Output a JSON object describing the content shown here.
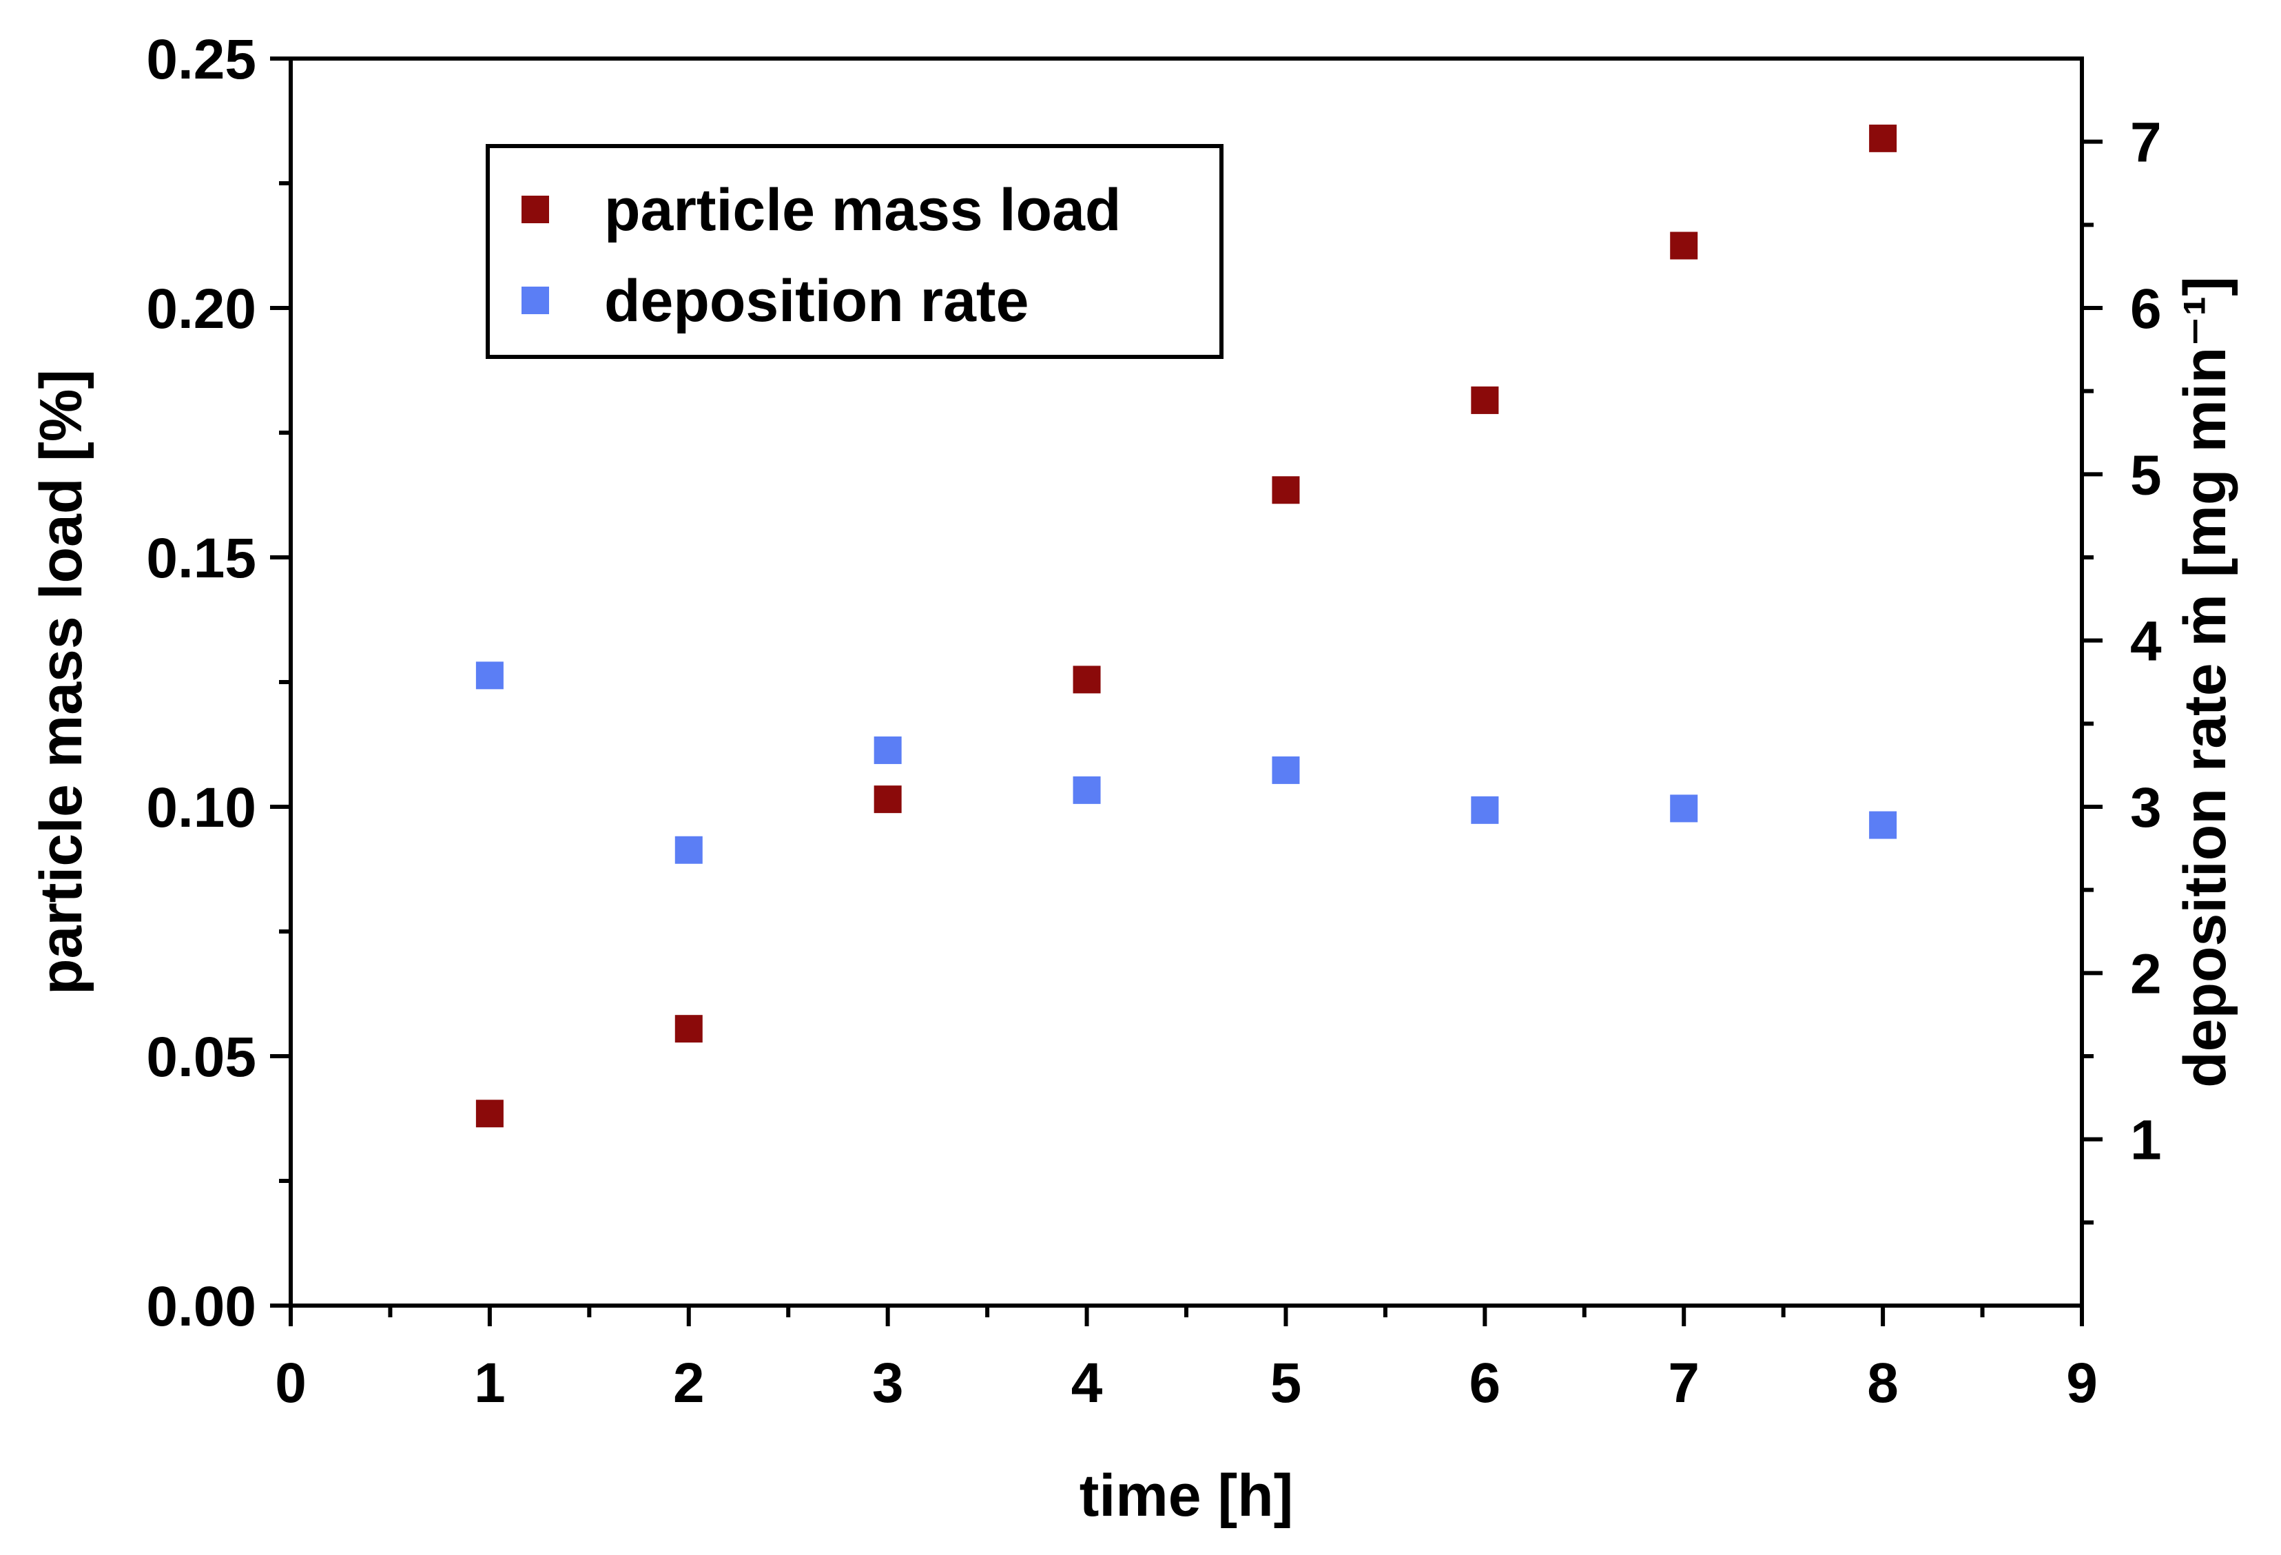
{
  "chart_data": {
    "type": "scatter",
    "title": "",
    "xlabel": "time [h]",
    "ylabel_left": "particle mass load [%]",
    "ylabel_right": "deposition rate ṁ [mg min⁻¹]",
    "xlim": [
      0,
      9
    ],
    "ylim_left": [
      0,
      0.25
    ],
    "ylim_right": [
      0,
      7.5
    ],
    "x_ticks": [
      "0",
      "1",
      "2",
      "3",
      "4",
      "5",
      "6",
      "7",
      "8",
      "9"
    ],
    "y_left_ticks": [
      "0.00",
      "0.05",
      "0.10",
      "0.15",
      "0.20",
      "0.25"
    ],
    "y_right_ticks": [
      "1",
      "2",
      "3",
      "4",
      "5",
      "6",
      "7"
    ],
    "grid": false,
    "legend_position": "top-left",
    "series": [
      {
        "name": "particle mass load",
        "axis": "left",
        "color": "#8b0a0a",
        "marker": "square",
        "x": [
          1,
          2,
          3,
          4,
          5,
          6,
          7,
          8
        ],
        "y": [
          0.0385,
          0.0555,
          0.1015,
          0.1255,
          0.1635,
          0.1815,
          0.2125,
          0.234
        ]
      },
      {
        "name": "deposition rate",
        "axis": "right",
        "color": "#5b7ef5",
        "marker": "square",
        "x": [
          1,
          2,
          3,
          4,
          5,
          6,
          7,
          8
        ],
        "y": [
          3.79,
          2.74,
          3.34,
          3.1,
          3.22,
          2.98,
          2.99,
          2.89
        ]
      }
    ]
  }
}
